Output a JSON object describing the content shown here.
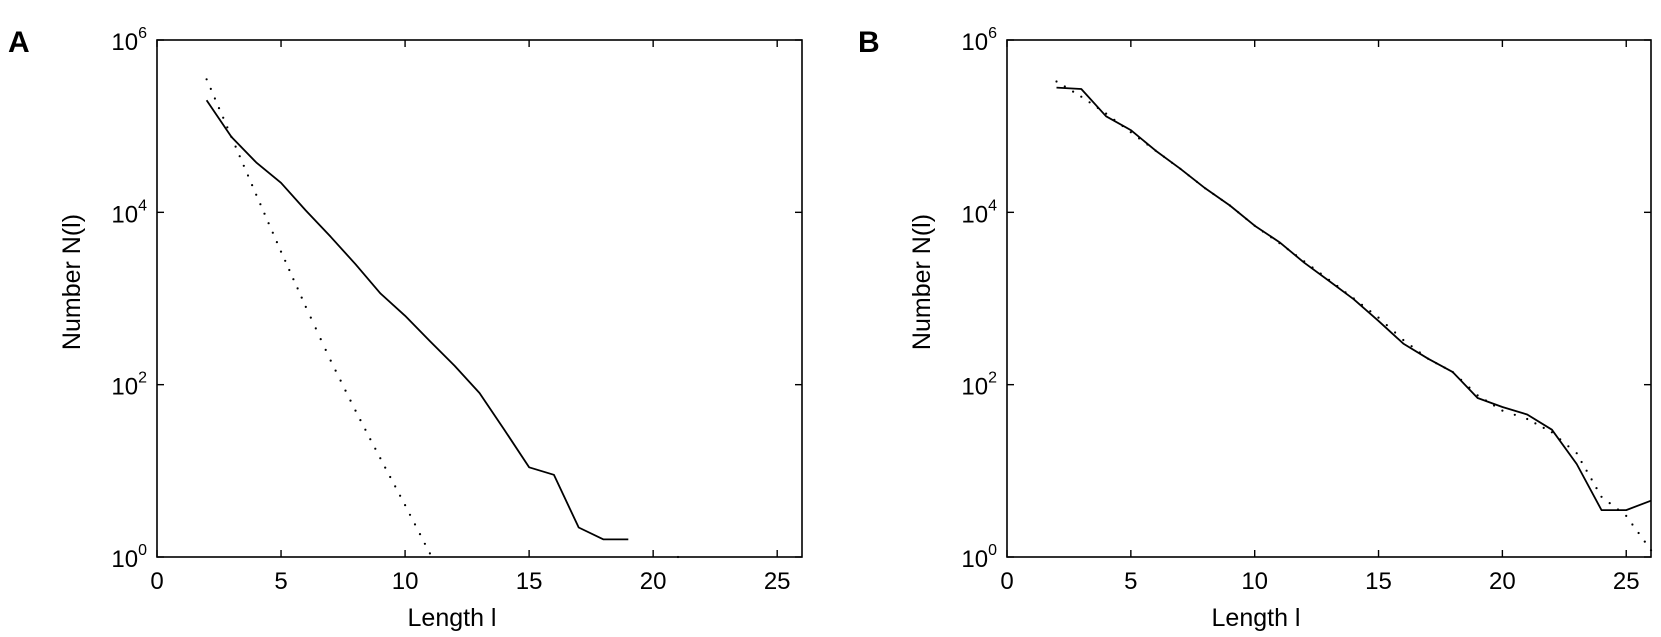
{
  "chart_data": [
    {
      "panel": "A",
      "type": "line",
      "xlabel": "Length l",
      "ylabel": "Number N(l)",
      "xlim": [
        0,
        26
      ],
      "ylim": [
        1,
        1000000
      ],
      "yscale": "log",
      "xticks": [
        "0",
        "5",
        "10",
        "15",
        "20",
        "25"
      ],
      "yticks": [
        {
          "base": "10",
          "exp": "0"
        },
        {
          "base": "10",
          "exp": "2"
        },
        {
          "base": "10",
          "exp": "4"
        },
        {
          "base": "10",
          "exp": "6"
        }
      ],
      "series": [
        {
          "style": "solid",
          "color": "#000000",
          "x": [
            2,
            3,
            4,
            5,
            6,
            7,
            8,
            9,
            10,
            11,
            12,
            13,
            14,
            15,
            16,
            17,
            18,
            19
          ],
          "y": [
            200000,
            75000,
            38000,
            22000,
            10500,
            5200,
            2500,
            1150,
            630,
            320,
            165,
            80,
            30,
            11,
            9,
            2.2,
            1.6,
            1.6
          ]
        },
        {
          "style": "dotted",
          "color": "#000000",
          "x": [
            2,
            3,
            4,
            5,
            6,
            7,
            8,
            9,
            10,
            11,
            11.5,
            21
          ],
          "y": [
            350000,
            75000,
            16000,
            3500,
            800,
            190,
            50,
            14,
            4,
            1.1,
            1,
            1
          ]
        }
      ]
    },
    {
      "panel": "B",
      "type": "line",
      "xlabel": "Length l",
      "ylabel": "Number N(l)",
      "xlim": [
        0,
        26
      ],
      "ylim": [
        1,
        1000000
      ],
      "yscale": "log",
      "xticks": [
        "0",
        "5",
        "10",
        "15",
        "20",
        "25"
      ],
      "yticks": [
        {
          "base": "10",
          "exp": "0"
        },
        {
          "base": "10",
          "exp": "2"
        },
        {
          "base": "10",
          "exp": "4"
        },
        {
          "base": "10",
          "exp": "6"
        }
      ],
      "series": [
        {
          "style": "solid",
          "color": "#000000",
          "x": [
            2,
            3,
            4,
            5,
            6,
            7,
            8,
            9,
            10,
            11,
            12,
            13,
            14,
            15,
            16,
            17,
            18,
            19,
            20,
            21,
            22,
            23,
            24,
            25,
            26
          ],
          "y": [
            280000,
            270000,
            130000,
            90000,
            52000,
            32000,
            19000,
            12000,
            7000,
            4500,
            2600,
            1600,
            980,
            550,
            300,
            200,
            140,
            70,
            55,
            45,
            30,
            12,
            3.5,
            3.5,
            4.5
          ]
        },
        {
          "style": "dotted",
          "color": "#000000",
          "x": [
            2,
            3,
            4,
            5,
            6,
            7,
            8,
            9,
            10,
            11,
            12,
            13,
            14,
            15,
            16,
            17,
            18,
            19,
            20,
            21,
            22,
            23,
            24,
            25,
            26
          ],
          "y": [
            330000,
            220000,
            140000,
            85000,
            52000,
            32000,
            19000,
            12000,
            7000,
            4400,
            2700,
            1650,
            1000,
            600,
            330,
            200,
            140,
            75,
            50,
            40,
            28,
            16,
            5,
            3,
            1.2
          ]
        }
      ]
    }
  ]
}
